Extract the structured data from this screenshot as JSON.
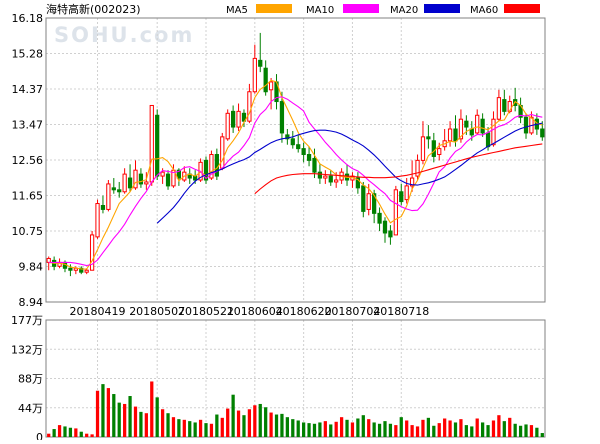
{
  "chart_data": {
    "type": "candlestick",
    "title": "海特高新(002023)",
    "watermark": "SOHU.com",
    "up_color": "#ff0000",
    "down_color": "#008000",
    "legend": [
      {
        "name": "MA5",
        "color": "#ffa500"
      },
      {
        "name": "MA10",
        "color": "#ff00ff"
      },
      {
        "name": "MA20",
        "color": "#0000cd"
      },
      {
        "name": "MA60",
        "color": "#ff0000"
      }
    ],
    "price_axis": {
      "ylim": [
        8.94,
        16.18
      ],
      "ticks": [
        "8.94",
        "9.84",
        "10.75",
        "11.65",
        "12.56",
        "13.47",
        "14.37",
        "15.28",
        "16.18"
      ]
    },
    "date_labels": [
      "20180419",
      "20180507",
      "20180521",
      "20180604",
      "20180620",
      "20180704",
      "20180718"
    ],
    "date_label_index": [
      9,
      20,
      29,
      38,
      47,
      56,
      65
    ],
    "volume_axis": {
      "ylim": [
        0,
        177
      ],
      "ticks": [
        "0",
        "44万",
        "88万",
        "132万",
        "177万"
      ]
    },
    "candles": [
      [
        9.95,
        10.05,
        9.75,
        10.1
      ],
      [
        10.0,
        9.85,
        9.75,
        10.1
      ],
      [
        9.85,
        9.95,
        9.8,
        10.05
      ],
      [
        9.95,
        9.8,
        9.7,
        10.0
      ],
      [
        9.8,
        9.75,
        9.6,
        9.9
      ],
      [
        9.75,
        9.8,
        9.65,
        9.85
      ],
      [
        9.8,
        9.7,
        9.65,
        9.85
      ],
      [
        9.7,
        9.75,
        9.65,
        9.8
      ],
      [
        9.75,
        10.65,
        9.75,
        10.75
      ],
      [
        10.6,
        11.45,
        10.55,
        11.55
      ],
      [
        11.4,
        11.3,
        11.2,
        11.65
      ],
      [
        11.3,
        11.95,
        11.25,
        12.05
      ],
      [
        11.85,
        11.8,
        11.7,
        12.1
      ],
      [
        11.8,
        11.75,
        11.6,
        12.0
      ],
      [
        11.75,
        12.2,
        11.7,
        12.35
      ],
      [
        12.1,
        11.85,
        11.75,
        12.45
      ],
      [
        11.85,
        12.3,
        11.8,
        12.55
      ],
      [
        12.2,
        11.95,
        11.85,
        12.35
      ],
      [
        11.95,
        12.0,
        11.8,
        12.25
      ],
      [
        12.0,
        13.95,
        11.9,
        13.95
      ],
      [
        13.7,
        12.15,
        12.05,
        13.85
      ],
      [
        12.15,
        12.25,
        11.95,
        12.35
      ],
      [
        12.2,
        11.9,
        11.8,
        12.3
      ],
      [
        11.9,
        12.3,
        11.85,
        12.45
      ],
      [
        12.3,
        12.1,
        11.9,
        12.35
      ],
      [
        12.05,
        12.25,
        12.0,
        12.4
      ],
      [
        12.2,
        12.1,
        11.95,
        12.35
      ],
      [
        12.15,
        12.05,
        11.95,
        12.3
      ],
      [
        12.05,
        12.5,
        12.0,
        12.6
      ],
      [
        12.55,
        12.05,
        11.95,
        12.65
      ],
      [
        12.1,
        12.7,
        12.05,
        12.8
      ],
      [
        12.7,
        12.15,
        12.05,
        12.85
      ],
      [
        12.35,
        13.15,
        12.3,
        13.25
      ],
      [
        13.1,
        13.75,
        13.05,
        13.85
      ],
      [
        13.8,
        13.4,
        13.25,
        13.95
      ],
      [
        13.4,
        13.8,
        13.3,
        14.0
      ],
      [
        13.75,
        13.55,
        13.4,
        13.85
      ],
      [
        13.55,
        14.3,
        13.5,
        14.5
      ],
      [
        14.3,
        15.15,
        14.25,
        15.5
      ],
      [
        15.1,
        14.95,
        14.8,
        15.8
      ],
      [
        14.9,
        14.3,
        14.2,
        15.1
      ],
      [
        14.35,
        14.55,
        13.85,
        14.65
      ],
      [
        14.55,
        14.05,
        13.85,
        14.75
      ],
      [
        14.05,
        13.25,
        13.0,
        14.3
      ],
      [
        13.2,
        13.1,
        12.95,
        13.35
      ],
      [
        13.1,
        12.95,
        12.85,
        13.3
      ],
      [
        12.95,
        12.85,
        12.75,
        13.2
      ],
      [
        12.85,
        12.7,
        12.5,
        13.0
      ],
      [
        12.7,
        12.55,
        12.4,
        12.9
      ],
      [
        12.6,
        12.25,
        12.1,
        12.85
      ],
      [
        12.25,
        12.1,
        11.95,
        12.45
      ],
      [
        12.1,
        12.15,
        11.95,
        12.3
      ],
      [
        12.15,
        12.0,
        11.9,
        12.3
      ],
      [
        12.0,
        12.05,
        11.85,
        12.25
      ],
      [
        12.05,
        12.25,
        11.95,
        12.35
      ],
      [
        12.2,
        12.05,
        11.9,
        12.45
      ],
      [
        12.05,
        12.15,
        11.85,
        12.25
      ],
      [
        12.1,
        11.85,
        11.7,
        12.25
      ],
      [
        11.9,
        11.25,
        11.1,
        12.0
      ],
      [
        11.3,
        11.7,
        11.15,
        11.95
      ],
      [
        11.7,
        11.2,
        10.95,
        11.8
      ],
      [
        11.2,
        10.95,
        10.75,
        11.35
      ],
      [
        11.0,
        10.7,
        10.45,
        11.1
      ],
      [
        10.75,
        10.6,
        10.4,
        10.9
      ],
      [
        10.65,
        11.8,
        10.65,
        11.9
      ],
      [
        11.75,
        11.5,
        11.4,
        11.95
      ],
      [
        11.55,
        11.9,
        11.45,
        12.1
      ],
      [
        11.9,
        12.1,
        11.75,
        12.55
      ],
      [
        12.15,
        12.55,
        12.05,
        12.7
      ],
      [
        12.55,
        13.15,
        12.45,
        13.55
      ],
      [
        13.15,
        13.1,
        12.85,
        13.45
      ],
      [
        13.05,
        12.65,
        12.5,
        13.25
      ],
      [
        12.7,
        12.85,
        12.55,
        13.0
      ],
      [
        12.9,
        13.05,
        12.8,
        13.35
      ],
      [
        13.05,
        13.35,
        12.9,
        13.55
      ],
      [
        13.35,
        13.05,
        12.9,
        13.7
      ],
      [
        13.1,
        13.6,
        13.0,
        13.85
      ],
      [
        13.55,
        13.4,
        13.2,
        13.7
      ],
      [
        13.35,
        13.2,
        13.05,
        13.55
      ],
      [
        13.25,
        13.7,
        13.2,
        13.85
      ],
      [
        13.6,
        13.25,
        13.15,
        13.75
      ],
      [
        13.25,
        12.9,
        12.8,
        13.4
      ],
      [
        12.95,
        13.6,
        12.9,
        13.8
      ],
      [
        13.6,
        14.15,
        13.55,
        14.35
      ],
      [
        14.1,
        13.8,
        13.7,
        14.35
      ],
      [
        13.8,
        14.05,
        13.75,
        14.2
      ],
      [
        14.1,
        13.95,
        13.8,
        14.4
      ],
      [
        13.95,
        13.65,
        13.5,
        14.15
      ],
      [
        13.65,
        13.25,
        13.1,
        13.75
      ],
      [
        13.25,
        13.65,
        13.2,
        13.8
      ],
      [
        13.6,
        13.35,
        13.2,
        13.75
      ],
      [
        13.35,
        13.15,
        13.05,
        13.55
      ]
    ],
    "volumes": [
      5,
      12,
      18,
      16,
      14,
      13,
      8,
      5,
      4,
      70,
      80,
      74,
      65,
      52,
      50,
      62,
      46,
      38,
      36,
      84,
      60,
      42,
      36,
      30,
      27,
      26,
      24,
      22,
      26,
      21,
      20,
      34,
      29,
      43,
      64,
      40,
      33,
      42,
      48,
      50,
      45,
      37,
      34,
      35,
      30,
      27,
      25,
      22,
      21,
      20,
      22,
      24,
      19,
      23,
      30,
      26,
      22,
      28,
      33,
      27,
      22,
      20,
      24,
      20,
      18,
      30,
      25,
      18,
      16,
      26,
      29,
      17,
      21,
      28,
      25,
      22,
      27,
      18,
      16,
      28,
      22,
      18,
      25,
      33,
      24,
      29,
      20,
      17,
      19,
      18,
      14,
      6
    ],
    "ma5": [
      9.95,
      9.93,
      9.93,
      9.9,
      9.83,
      9.81,
      9.78,
      9.78,
      9.99,
      10.27,
      10.58,
      10.85,
      11.15,
      11.45,
      11.6,
      11.75,
      11.99,
      12.01,
      12.06,
      12.58,
      12.59,
      12.62,
      12.52,
      12.32,
      12.03,
      12.15,
      12.2,
      12.15,
      12.25,
      12.17,
      12.27,
      12.35,
      12.55,
      12.87,
      13.05,
      13.25,
      13.52,
      13.75,
      14.15,
      14.36,
      14.46,
      14.59,
      14.55,
      14.15,
      13.86,
      13.57,
      13.26,
      13.04,
      12.9,
      12.68,
      12.46,
      12.38,
      12.3,
      12.18,
      12.14,
      12.12,
      12.11,
      12.06,
      11.92,
      11.83,
      11.66,
      11.43,
      11.18,
      10.96,
      11.05,
      11.12,
      11.39,
      11.82,
      12.04,
      12.36,
      12.67,
      12.78,
      12.93,
      12.97,
      13.04,
      13.02,
      13.16,
      13.29,
      13.36,
      13.4,
      13.37,
      13.33,
      13.44,
      13.56,
      13.58,
      13.82,
      14.05,
      13.95,
      13.73,
      13.63,
      13.5,
      13.45
    ],
    "ma10": [
      9.95,
      9.95,
      9.95,
      9.95,
      9.95,
      9.93,
      9.9,
      9.87,
      9.9,
      10.01,
      10.2,
      10.38,
      10.57,
      10.73,
      10.92,
      11.16,
      11.38,
      11.58,
      11.76,
      12.0,
      12.17,
      12.29,
      12.27,
      12.24,
      12.27,
      12.37,
      12.39,
      12.32,
      12.27,
      12.09,
      12.2,
      12.27,
      12.35,
      12.52,
      12.66,
      12.76,
      12.93,
      13.13,
      13.5,
      13.72,
      13.85,
      14.05,
      14.15,
      14.17,
      14.11,
      14.01,
      13.92,
      13.81,
      13.52,
      13.35,
      13.19,
      13.01,
      12.86,
      12.7,
      12.56,
      12.44,
      12.34,
      12.28,
      12.17,
      12.04,
      11.93,
      11.81,
      11.7,
      11.53,
      11.45,
      11.37,
      11.31,
      11.27,
      11.28,
      11.44,
      11.69,
      11.97,
      12.26,
      12.39,
      12.61,
      12.78,
      12.86,
      13.02,
      13.13,
      13.21,
      13.2,
      13.26,
      13.34,
      13.42,
      13.46,
      13.54,
      13.65,
      13.7,
      13.68,
      13.72,
      13.68,
      13.65
    ],
    "ma20": [
      null,
      null,
      null,
      null,
      null,
      null,
      null,
      null,
      null,
      null,
      null,
      null,
      null,
      null,
      null,
      null,
      null,
      null,
      null,
      null,
      10.95,
      11.08,
      11.21,
      11.35,
      11.52,
      11.71,
      11.88,
      12.02,
      12.12,
      12.18,
      12.24,
      12.28,
      12.33,
      12.4,
      12.46,
      12.52,
      12.57,
      12.64,
      12.75,
      12.83,
      12.92,
      13.0,
      13.06,
      13.1,
      13.12,
      13.15,
      13.2,
      13.24,
      13.28,
      13.31,
      13.32,
      13.32,
      13.3,
      13.27,
      13.22,
      13.15,
      13.07,
      13.0,
      12.92,
      12.81,
      12.69,
      12.55,
      12.4,
      12.26,
      12.12,
      12.03,
      11.96,
      11.93,
      11.92,
      11.95,
      11.98,
      12.02,
      12.07,
      12.13,
      12.22,
      12.32,
      12.42,
      12.53,
      12.64,
      12.74,
      12.82,
      12.91,
      12.98,
      13.06,
      13.14,
      13.22,
      13.3,
      13.36,
      13.4,
      13.44,
      13.47,
      13.5
    ],
    "ma60": [
      null,
      null,
      null,
      null,
      null,
      null,
      null,
      null,
      null,
      null,
      null,
      null,
      null,
      null,
      null,
      null,
      null,
      null,
      null,
      null,
      null,
      null,
      null,
      null,
      null,
      null,
      null,
      null,
      null,
      null,
      null,
      null,
      null,
      null,
      null,
      null,
      null,
      null,
      11.7,
      11.82,
      11.93,
      12.03,
      12.1,
      12.14,
      12.17,
      12.19,
      12.2,
      12.21,
      12.21,
      12.21,
      12.2,
      12.19,
      12.18,
      12.17,
      12.16,
      12.15,
      12.14,
      12.13,
      12.12,
      12.12,
      12.11,
      12.11,
      12.11,
      12.12,
      12.13,
      12.15,
      12.17,
      12.2,
      12.23,
      12.27,
      12.31,
      12.35,
      12.39,
      12.43,
      12.47,
      12.51,
      12.55,
      12.59,
      12.63,
      12.66,
      12.69,
      12.72,
      12.75,
      12.78,
      12.81,
      12.84,
      12.87,
      12.89,
      12.91,
      12.93,
      12.95,
      12.97
    ]
  }
}
